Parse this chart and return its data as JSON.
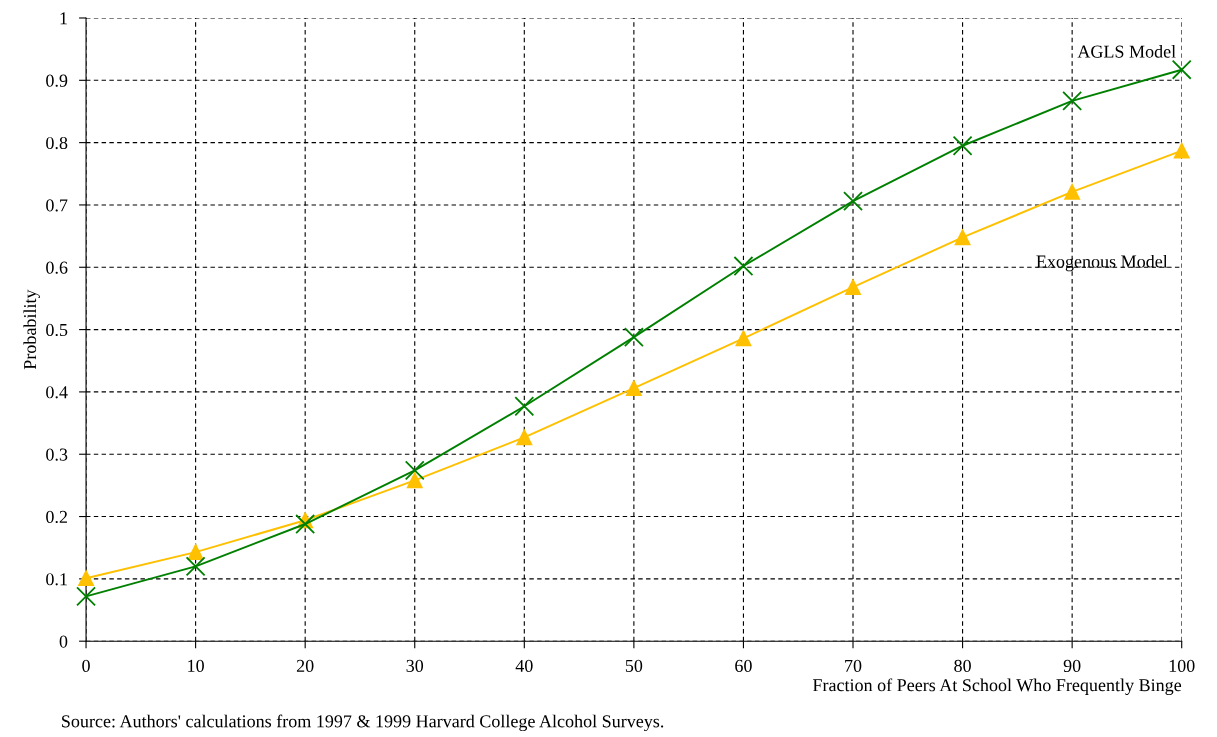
{
  "chart_data": {
    "type": "line",
    "xlabel": "Fraction of Peers At School Who Frequently Binge",
    "ylabel": "Probability",
    "annotations": [
      "Source: Authors' calculations from 1997 & 1999 Harvard College Alcohol Surveys."
    ],
    "x": [
      0,
      10,
      20,
      30,
      40,
      50,
      60,
      70,
      80,
      90,
      100
    ],
    "series": [
      {
        "name": "AGLS Model",
        "color": "#008000",
        "marker": "cross",
        "values": [
          0.072,
          0.12,
          0.188,
          0.274,
          0.377,
          0.488,
          0.602,
          0.706,
          0.795,
          0.867,
          0.917
        ]
      },
      {
        "name": "Exogenous Model",
        "color": "#ffc000",
        "marker": "triangle",
        "values": [
          0.101,
          0.143,
          0.194,
          0.258,
          0.327,
          0.406,
          0.486,
          0.568,
          0.648,
          0.721,
          0.787
        ]
      }
    ],
    "xlim": [
      0,
      100
    ],
    "xticks": [
      0,
      10,
      20,
      30,
      40,
      50,
      60,
      70,
      80,
      90,
      100
    ],
    "ylim": [
      0,
      1
    ],
    "yticks": [
      0,
      0.1,
      0.2,
      0.3,
      0.4,
      0.5,
      0.6,
      0.7,
      0.8,
      0.9,
      1
    ],
    "grid": true,
    "line_style": "solid",
    "legend": false
  }
}
